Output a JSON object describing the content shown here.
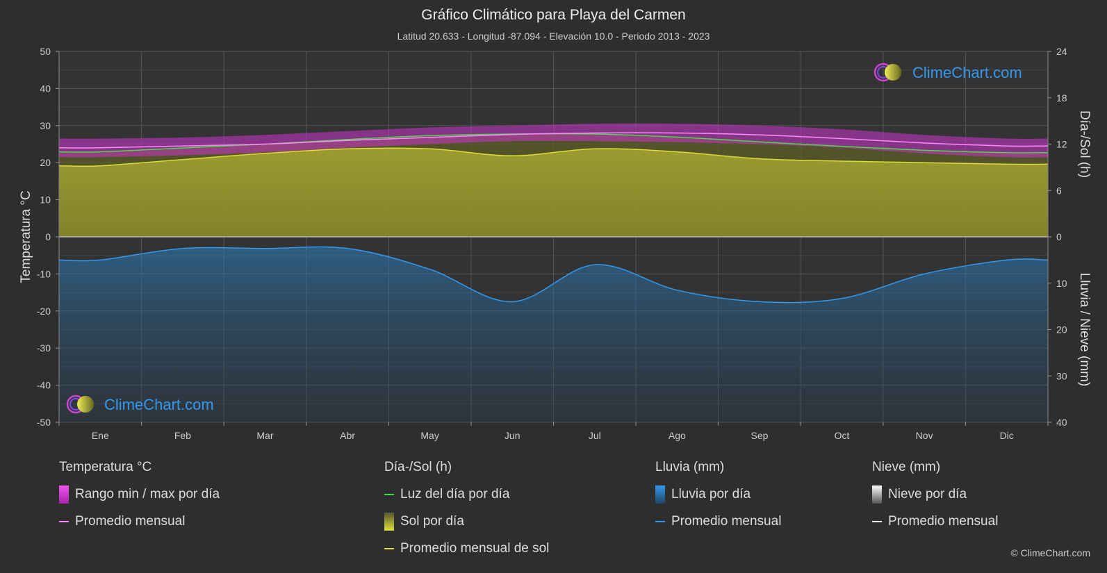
{
  "title": "Gráfico Climático para Playa del Carmen",
  "subtitle": "Latitud 20.633 - Longitud -87.094 - Elevación 10.0 - Periodo 2013 - 2023",
  "watermark": "ClimeChart.com",
  "copyright": "© ClimeChart.com",
  "colors": {
    "background": "#2e2e2e",
    "temp_range": "#cc33cc",
    "temp_avg": "#ff88ff",
    "daylight": "#44dd44",
    "sunshine_fill": "#a8a832",
    "sunshine_avg": "#dddd33",
    "rain": "#2a7fc0",
    "rain_avg": "#3399ee",
    "snow_avg": "#ffffff"
  },
  "legend": {
    "temperature": {
      "header": "Temperatura °C",
      "range": "Rango min / max por día",
      "avg": "Promedio mensual"
    },
    "sun": {
      "header": "Día-/Sol (h)",
      "daylight": "Luz del día por día",
      "sunshine": "Sol por día",
      "sunshine_avg": "Promedio mensual de sol"
    },
    "rain": {
      "header": "Lluvia (mm)",
      "daily": "Lluvia por día",
      "avg": "Promedio mensual"
    },
    "snow": {
      "header": "Nieve (mm)",
      "daily": "Nieve por día",
      "avg": "Promedio mensual"
    }
  },
  "chart_data": {
    "type": "line",
    "categories": [
      "Ene",
      "Feb",
      "Mar",
      "Abr",
      "May",
      "Jun",
      "Jul",
      "Ago",
      "Sep",
      "Oct",
      "Nov",
      "Dic"
    ],
    "y_left": {
      "label": "Temperatura °C",
      "min": -50,
      "max": 50,
      "ticks": [
        50,
        40,
        30,
        20,
        10,
        0,
        -10,
        -20,
        -30,
        -40,
        -50
      ]
    },
    "y_right_top": {
      "label": "Día-/Sol (h)",
      "min": 0,
      "max": 24,
      "ticks": [
        24,
        18,
        12,
        6,
        0
      ]
    },
    "y_right_bottom": {
      "label": "Lluvia / Nieve (mm)",
      "min": 0,
      "max": 40,
      "ticks": [
        0,
        10,
        20,
        30,
        40
      ]
    },
    "grid": true,
    "series": [
      {
        "name": "Rango min / max por día",
        "kind": "band",
        "unit": "°C",
        "low": [
          21.5,
          22.0,
          22.8,
          24.0,
          25.0,
          25.8,
          25.8,
          25.5,
          25.0,
          24.0,
          22.5,
          21.5
        ],
        "high": [
          26.5,
          26.8,
          27.5,
          28.5,
          29.5,
          30.0,
          30.5,
          30.5,
          30.0,
          29.0,
          27.5,
          26.5
        ]
      },
      {
        "name": "Promedio mensual",
        "kind": "temp_avg",
        "unit": "°C",
        "values": [
          24.0,
          24.5,
          25.0,
          26.0,
          26.8,
          27.6,
          28.0,
          28.0,
          27.5,
          26.5,
          25.3,
          24.5
        ]
      },
      {
        "name": "Luz del día por día",
        "kind": "daylight",
        "unit": "h",
        "values": [
          11.0,
          11.5,
          12.0,
          12.6,
          13.1,
          13.3,
          13.3,
          12.9,
          12.3,
          11.7,
          11.2,
          10.9
        ]
      },
      {
        "name": "Promedio mensual de sol",
        "kind": "sunshine",
        "unit": "h",
        "values": [
          9.2,
          10.0,
          10.8,
          11.4,
          11.4,
          10.5,
          11.4,
          11.0,
          10.1,
          9.8,
          9.6,
          9.4
        ]
      },
      {
        "name": "Promedio mensual",
        "kind": "rain_avg",
        "unit": "mm",
        "values": [
          5.0,
          2.5,
          2.5,
          2.5,
          7.0,
          14.0,
          6.0,
          11.5,
          14.0,
          13.3,
          8.0,
          5.0
        ]
      }
    ]
  }
}
